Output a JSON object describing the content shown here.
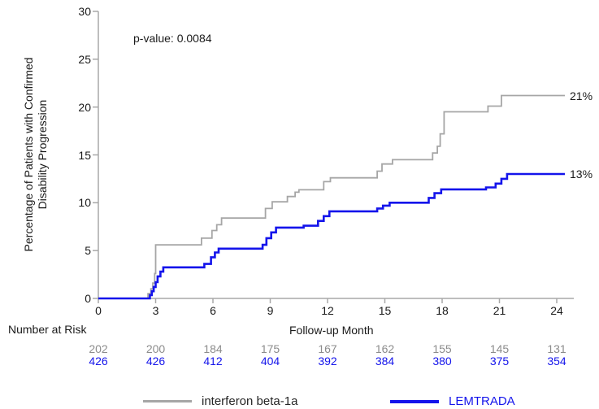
{
  "chart_data": {
    "type": "line",
    "subtype": "kaplan-meier-step",
    "title": "",
    "annotation": "p-value: 0.0084",
    "ylabel": "Percentage of Patients with Confirmed Disability Progression",
    "ylabel_lines": [
      "Percentage of Patients with Confirmed",
      "Disability Progression"
    ],
    "xlabel": "Follow-up Month",
    "xlim": [
      0,
      24
    ],
    "ylim": [
      0,
      30
    ],
    "x_ticks": [
      0,
      3,
      6,
      9,
      12,
      15,
      18,
      21,
      24
    ],
    "y_ticks": [
      0,
      5,
      10,
      15,
      20,
      25,
      30
    ],
    "grid": false,
    "legend_position": "bottom",
    "axis_color": "#a8a8a8",
    "text_color": "#1a1a1a",
    "series": [
      {
        "name": "interferon beta-1a",
        "color": "#a6a6a6",
        "line_width": 1.8,
        "end_label": "21%",
        "end_value": 21.2,
        "steps": [
          [
            0,
            0
          ],
          [
            2.6,
            0.5
          ],
          [
            2.75,
            1.0
          ],
          [
            2.85,
            1.6
          ],
          [
            2.95,
            2.6
          ],
          [
            3.0,
            5.6
          ],
          [
            5.4,
            6.3
          ],
          [
            5.95,
            7.1
          ],
          [
            6.2,
            7.7
          ],
          [
            6.45,
            8.4
          ],
          [
            8.75,
            9.4
          ],
          [
            9.1,
            10.1
          ],
          [
            9.9,
            10.65
          ],
          [
            10.3,
            11.1
          ],
          [
            10.5,
            11.35
          ],
          [
            11.8,
            12.2
          ],
          [
            12.15,
            12.6
          ],
          [
            14.6,
            13.3
          ],
          [
            14.85,
            14.05
          ],
          [
            15.4,
            14.5
          ],
          [
            17.5,
            15.2
          ],
          [
            17.75,
            15.9
          ],
          [
            17.9,
            17.2
          ],
          [
            18.1,
            19.5
          ],
          [
            20.4,
            20.1
          ],
          [
            21.1,
            21.2
          ],
          [
            24.4,
            21.2
          ]
        ]
      },
      {
        "name": "LEMTRADA",
        "color": "#1414eb",
        "line_width": 2.6,
        "end_label": "13%",
        "end_value": 13.0,
        "steps": [
          [
            0,
            0
          ],
          [
            2.7,
            0.35
          ],
          [
            2.8,
            0.75
          ],
          [
            2.9,
            1.2
          ],
          [
            3.0,
            1.7
          ],
          [
            3.1,
            2.3
          ],
          [
            3.25,
            2.8
          ],
          [
            3.4,
            3.25
          ],
          [
            5.55,
            3.6
          ],
          [
            5.9,
            4.3
          ],
          [
            6.1,
            4.8
          ],
          [
            6.3,
            5.2
          ],
          [
            8.6,
            5.6
          ],
          [
            8.8,
            6.3
          ],
          [
            9.05,
            6.9
          ],
          [
            9.3,
            7.4
          ],
          [
            10.75,
            7.6
          ],
          [
            11.5,
            8.1
          ],
          [
            11.8,
            8.6
          ],
          [
            12.1,
            9.1
          ],
          [
            14.6,
            9.4
          ],
          [
            14.9,
            9.7
          ],
          [
            15.25,
            10.0
          ],
          [
            17.3,
            10.5
          ],
          [
            17.6,
            11.0
          ],
          [
            17.95,
            11.4
          ],
          [
            20.3,
            11.6
          ],
          [
            20.8,
            12.0
          ],
          [
            21.1,
            12.5
          ],
          [
            21.4,
            13.0
          ],
          [
            24.4,
            13.0
          ]
        ]
      }
    ],
    "number_at_risk": {
      "label": "Number at Risk",
      "months": [
        0,
        3,
        6,
        9,
        12,
        15,
        18,
        21,
        24
      ],
      "rows": [
        {
          "series": "interferon beta-1a",
          "color": "#8c8c8c",
          "values": [
            "202",
            "200",
            "184",
            "175",
            "167",
            "162",
            "155",
            "145",
            "131"
          ]
        },
        {
          "series": "LEMTRADA",
          "color": "#1414eb",
          "values": [
            "426",
            "426",
            "412",
            "404",
            "392",
            "384",
            "380",
            "375",
            "354"
          ]
        }
      ]
    },
    "legend": [
      {
        "label": "interferon beta-1a",
        "color": "#a6a6a6",
        "text_color": "#262626"
      },
      {
        "label": "LEMTRADA",
        "color": "#1414eb",
        "text_color": "#1414eb"
      }
    ]
  }
}
